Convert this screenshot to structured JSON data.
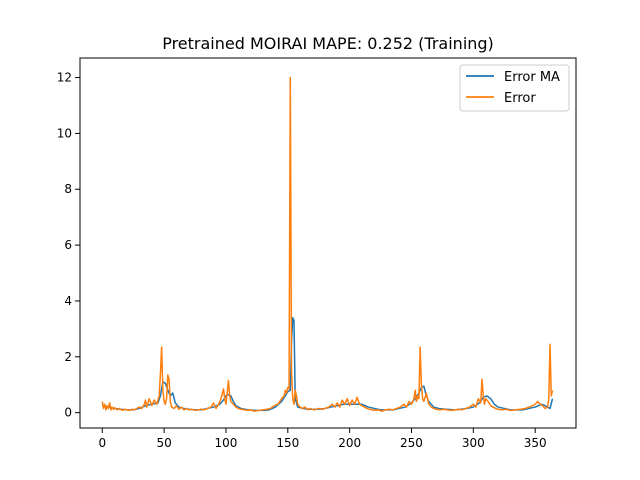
{
  "chart_data": {
    "type": "line",
    "title": "Pretrained MOIRAI MAPE: 0.252 (Training)",
    "xlabel": "",
    "ylabel": "",
    "xlim": [
      -18,
      383
    ],
    "ylim": [
      -0.55,
      12.7
    ],
    "xticks": [
      0,
      50,
      100,
      150,
      200,
      250,
      300,
      350
    ],
    "yticks": [
      0,
      2,
      4,
      6,
      8,
      10,
      12
    ],
    "grid": false,
    "legend": "top-right",
    "series": [
      {
        "name": "Error MA",
        "color": "#1f77b4",
        "points": [
          [
            0,
            0.25
          ],
          [
            5,
            0.2
          ],
          [
            10,
            0.15
          ],
          [
            15,
            0.12
          ],
          [
            20,
            0.1
          ],
          [
            25,
            0.1
          ],
          [
            30,
            0.15
          ],
          [
            35,
            0.25
          ],
          [
            40,
            0.3
          ],
          [
            45,
            0.35
          ],
          [
            47,
            0.6
          ],
          [
            49,
            1.1
          ],
          [
            51,
            1.05
          ],
          [
            53,
            0.8
          ],
          [
            55,
            0.6
          ],
          [
            57,
            0.7
          ],
          [
            59,
            0.35
          ],
          [
            62,
            0.2
          ],
          [
            66,
            0.15
          ],
          [
            70,
            0.12
          ],
          [
            75,
            0.1
          ],
          [
            80,
            0.1
          ],
          [
            85,
            0.15
          ],
          [
            90,
            0.2
          ],
          [
            95,
            0.3
          ],
          [
            98,
            0.45
          ],
          [
            100,
            0.6
          ],
          [
            102,
            0.65
          ],
          [
            104,
            0.6
          ],
          [
            106,
            0.4
          ],
          [
            108,
            0.25
          ],
          [
            112,
            0.15
          ],
          [
            118,
            0.1
          ],
          [
            125,
            0.08
          ],
          [
            130,
            0.08
          ],
          [
            135,
            0.1
          ],
          [
            140,
            0.2
          ],
          [
            145,
            0.4
          ],
          [
            148,
            0.6
          ],
          [
            150,
            0.75
          ],
          [
            152,
            0.8
          ],
          [
            153,
            2.5
          ],
          [
            154,
            3.4
          ],
          [
            155,
            3.3
          ],
          [
            156,
            0.5
          ],
          [
            158,
            0.2
          ],
          [
            162,
            0.15
          ],
          [
            168,
            0.12
          ],
          [
            175,
            0.12
          ],
          [
            180,
            0.15
          ],
          [
            185,
            0.2
          ],
          [
            190,
            0.25
          ],
          [
            195,
            0.3
          ],
          [
            200,
            0.3
          ],
          [
            205,
            0.3
          ],
          [
            210,
            0.3
          ],
          [
            215,
            0.2
          ],
          [
            220,
            0.15
          ],
          [
            225,
            0.1
          ],
          [
            230,
            0.1
          ],
          [
            235,
            0.1
          ],
          [
            240,
            0.15
          ],
          [
            245,
            0.2
          ],
          [
            250,
            0.35
          ],
          [
            253,
            0.5
          ],
          [
            256,
            0.7
          ],
          [
            258,
            0.9
          ],
          [
            260,
            0.95
          ],
          [
            262,
            0.6
          ],
          [
            264,
            0.4
          ],
          [
            268,
            0.2
          ],
          [
            272,
            0.15
          ],
          [
            278,
            0.12
          ],
          [
            285,
            0.1
          ],
          [
            290,
            0.12
          ],
          [
            295,
            0.15
          ],
          [
            300,
            0.2
          ],
          [
            305,
            0.35
          ],
          [
            308,
            0.55
          ],
          [
            311,
            0.6
          ],
          [
            314,
            0.5
          ],
          [
            317,
            0.3
          ],
          [
            320,
            0.2
          ],
          [
            325,
            0.15
          ],
          [
            330,
            0.1
          ],
          [
            335,
            0.1
          ],
          [
            340,
            0.1
          ],
          [
            345,
            0.15
          ],
          [
            350,
            0.2
          ],
          [
            355,
            0.3
          ],
          [
            358,
            0.25
          ],
          [
            360,
            0.2
          ],
          [
            362,
            0.15
          ],
          [
            364,
            0.5
          ]
        ]
      },
      {
        "name": "Error",
        "color": "#ff7f0e",
        "points": [
          [
            0,
            0.4
          ],
          [
            1,
            0.15
          ],
          [
            2,
            0.3
          ],
          [
            3,
            0.1
          ],
          [
            4,
            0.25
          ],
          [
            5,
            0.15
          ],
          [
            6,
            0.35
          ],
          [
            7,
            0.1
          ],
          [
            8,
            0.2
          ],
          [
            9,
            0.12
          ],
          [
            10,
            0.18
          ],
          [
            12,
            0.1
          ],
          [
            14,
            0.15
          ],
          [
            16,
            0.08
          ],
          [
            18,
            0.12
          ],
          [
            20,
            0.1
          ],
          [
            22,
            0.08
          ],
          [
            24,
            0.12
          ],
          [
            26,
            0.1
          ],
          [
            28,
            0.15
          ],
          [
            30,
            0.2
          ],
          [
            32,
            0.15
          ],
          [
            34,
            0.3
          ],
          [
            35,
            0.45
          ],
          [
            36,
            0.2
          ],
          [
            38,
            0.5
          ],
          [
            40,
            0.25
          ],
          [
            42,
            0.45
          ],
          [
            44,
            0.3
          ],
          [
            46,
            0.6
          ],
          [
            47,
            1.4
          ],
          [
            48,
            2.35
          ],
          [
            49,
            0.8
          ],
          [
            50,
            0.4
          ],
          [
            51,
            0.3
          ],
          [
            52,
            0.5
          ],
          [
            53,
            1.35
          ],
          [
            54,
            1.2
          ],
          [
            55,
            0.4
          ],
          [
            56,
            0.2
          ],
          [
            58,
            0.15
          ],
          [
            60,
            0.25
          ],
          [
            62,
            0.12
          ],
          [
            64,
            0.2
          ],
          [
            66,
            0.1
          ],
          [
            68,
            0.15
          ],
          [
            70,
            0.1
          ],
          [
            72,
            0.12
          ],
          [
            75,
            0.08
          ],
          [
            78,
            0.1
          ],
          [
            80,
            0.12
          ],
          [
            82,
            0.1
          ],
          [
            85,
            0.15
          ],
          [
            88,
            0.2
          ],
          [
            90,
            0.35
          ],
          [
            92,
            0.15
          ],
          [
            94,
            0.3
          ],
          [
            96,
            0.5
          ],
          [
            98,
            0.85
          ],
          [
            99,
            0.5
          ],
          [
            100,
            0.3
          ],
          [
            101,
            0.7
          ],
          [
            102,
            1.15
          ],
          [
            103,
            0.6
          ],
          [
            104,
            0.4
          ],
          [
            106,
            0.3
          ],
          [
            108,
            0.2
          ],
          [
            110,
            0.15
          ],
          [
            112,
            0.12
          ],
          [
            115,
            0.1
          ],
          [
            118,
            0.08
          ],
          [
            120,
            0.1
          ],
          [
            123,
            0.05
          ],
          [
            126,
            0.08
          ],
          [
            130,
            0.1
          ],
          [
            133,
            0.12
          ],
          [
            136,
            0.15
          ],
          [
            139,
            0.25
          ],
          [
            142,
            0.3
          ],
          [
            145,
            0.5
          ],
          [
            147,
            0.6
          ],
          [
            148,
            0.8
          ],
          [
            149,
            0.7
          ],
          [
            150,
            0.9
          ],
          [
            151,
            0.85
          ],
          [
            152,
            12.0
          ],
          [
            153,
            1.5
          ],
          [
            154,
            0.5
          ],
          [
            155,
            0.3
          ],
          [
            156,
            0.8
          ],
          [
            157,
            0.6
          ],
          [
            158,
            0.3
          ],
          [
            160,
            0.2
          ],
          [
            162,
            0.15
          ],
          [
            164,
            0.2
          ],
          [
            166,
            0.1
          ],
          [
            168,
            0.15
          ],
          [
            170,
            0.12
          ],
          [
            172,
            0.1
          ],
          [
            175,
            0.15
          ],
          [
            178,
            0.12
          ],
          [
            180,
            0.15
          ],
          [
            183,
            0.2
          ],
          [
            186,
            0.3
          ],
          [
            188,
            0.2
          ],
          [
            190,
            0.35
          ],
          [
            192,
            0.2
          ],
          [
            194,
            0.45
          ],
          [
            196,
            0.3
          ],
          [
            198,
            0.5
          ],
          [
            200,
            0.25
          ],
          [
            202,
            0.45
          ],
          [
            204,
            0.3
          ],
          [
            206,
            0.55
          ],
          [
            208,
            0.3
          ],
          [
            210,
            0.25
          ],
          [
            212,
            0.2
          ],
          [
            214,
            0.15
          ],
          [
            216,
            0.12
          ],
          [
            218,
            0.1
          ],
          [
            220,
            0.08
          ],
          [
            223,
            0.1
          ],
          [
            226,
            0.05
          ],
          [
            229,
            0.1
          ],
          [
            232,
            0.12
          ],
          [
            235,
            0.1
          ],
          [
            238,
            0.15
          ],
          [
            241,
            0.2
          ],
          [
            244,
            0.3
          ],
          [
            246,
            0.2
          ],
          [
            248,
            0.4
          ],
          [
            250,
            0.3
          ],
          [
            252,
            0.5
          ],
          [
            253,
            0.8
          ],
          [
            254,
            0.4
          ],
          [
            255,
            0.6
          ],
          [
            256,
            0.5
          ],
          [
            257,
            2.35
          ],
          [
            258,
            1.0
          ],
          [
            259,
            0.5
          ],
          [
            260,
            0.4
          ],
          [
            262,
            0.7
          ],
          [
            264,
            0.3
          ],
          [
            266,
            0.2
          ],
          [
            268,
            0.15
          ],
          [
            270,
            0.12
          ],
          [
            273,
            0.1
          ],
          [
            276,
            0.12
          ],
          [
            279,
            0.1
          ],
          [
            282,
            0.08
          ],
          [
            285,
            0.1
          ],
          [
            288,
            0.12
          ],
          [
            291,
            0.1
          ],
          [
            294,
            0.15
          ],
          [
            297,
            0.2
          ],
          [
            300,
            0.3
          ],
          [
            302,
            0.2
          ],
          [
            304,
            0.5
          ],
          [
            306,
            0.35
          ],
          [
            307,
            1.2
          ],
          [
            308,
            0.6
          ],
          [
            309,
            0.3
          ],
          [
            310,
            0.5
          ],
          [
            312,
            0.4
          ],
          [
            314,
            0.25
          ],
          [
            316,
            0.2
          ],
          [
            318,
            0.15
          ],
          [
            320,
            0.12
          ],
          [
            323,
            0.1
          ],
          [
            326,
            0.12
          ],
          [
            330,
            0.08
          ],
          [
            334,
            0.1
          ],
          [
            338,
            0.12
          ],
          [
            342,
            0.15
          ],
          [
            345,
            0.2
          ],
          [
            348,
            0.25
          ],
          [
            350,
            0.3
          ],
          [
            352,
            0.4
          ],
          [
            354,
            0.3
          ],
          [
            356,
            0.25
          ],
          [
            358,
            0.15
          ],
          [
            360,
            0.2
          ],
          [
            361,
            0.5
          ],
          [
            362,
            2.45
          ],
          [
            363,
            0.6
          ],
          [
            364,
            0.8
          ]
        ]
      }
    ]
  }
}
